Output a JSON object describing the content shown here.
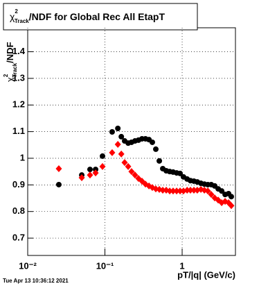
{
  "chart_data": {
    "type": "scatter",
    "title": {
      "symbol": "χ",
      "sup": "2",
      "sub": "Track",
      "text": "/NDF for Global Rec All EtapT"
    },
    "ylabel": {
      "symbol": "χ",
      "sup": "2",
      "sub": "Track",
      "text": "/NDF"
    },
    "xlabel": "pT/|q| (GeV/c)",
    "footer": "Tue Apr 13 10:36:12 2021",
    "xscale": "log",
    "grid": true,
    "xlim": [
      0.01,
      4.9
    ],
    "ylim": [
      0.635,
      1.49
    ],
    "xticks": [
      {
        "value": 0.01,
        "label": "10⁻²"
      },
      {
        "value": 0.1,
        "label": "10⁻¹"
      },
      1
    ],
    "yticks": [
      0.7,
      0.8,
      0.9,
      1,
      1.1,
      1.2,
      1.3,
      1.4
    ],
    "x": [
      0.0253,
      0.0501,
      0.0641,
      0.0757,
      0.093,
      0.124,
      0.147,
      0.163,
      0.18,
      0.2,
      0.221,
      0.245,
      0.272,
      0.302,
      0.335,
      0.372,
      0.411,
      0.456,
      0.506,
      0.561,
      0.622,
      0.69,
      0.764,
      0.848,
      0.94,
      1.04,
      1.16,
      1.28,
      1.42,
      1.57,
      1.75,
      1.94,
      2.15,
      2.38,
      2.64,
      2.93,
      3.25,
      3.6,
      3.99,
      4.33
    ],
    "series": [
      {
        "color": "#000000",
        "marker": "circle",
        "values": [
          0.901,
          0.937,
          0.958,
          0.958,
          1.008,
          1.099,
          1.112,
          1.081,
          1.065,
          1.057,
          1.06,
          1.065,
          1.068,
          1.073,
          1.073,
          1.07,
          1.06,
          1.034,
          0.99,
          0.961,
          0.953,
          0.95,
          0.948,
          0.945,
          0.943,
          0.93,
          0.922,
          0.916,
          0.914,
          0.911,
          0.906,
          0.903,
          0.901,
          0.901,
          0.896,
          0.885,
          0.877,
          0.864,
          0.867,
          0.856
        ]
      },
      {
        "color": "#ff0000",
        "marker": "diamond",
        "values": [
          0.961,
          0.927,
          0.937,
          0.945,
          0.969,
          1.021,
          1.052,
          1.016,
          0.984,
          0.969,
          0.95,
          0.937,
          0.924,
          0.914,
          0.903,
          0.896,
          0.89,
          0.885,
          0.883,
          0.88,
          0.88,
          0.877,
          0.877,
          0.877,
          0.877,
          0.877,
          0.88,
          0.88,
          0.88,
          0.88,
          0.883,
          0.88,
          0.877,
          0.864,
          0.851,
          0.843,
          0.833,
          0.838,
          0.833,
          0.822
        ]
      }
    ]
  }
}
